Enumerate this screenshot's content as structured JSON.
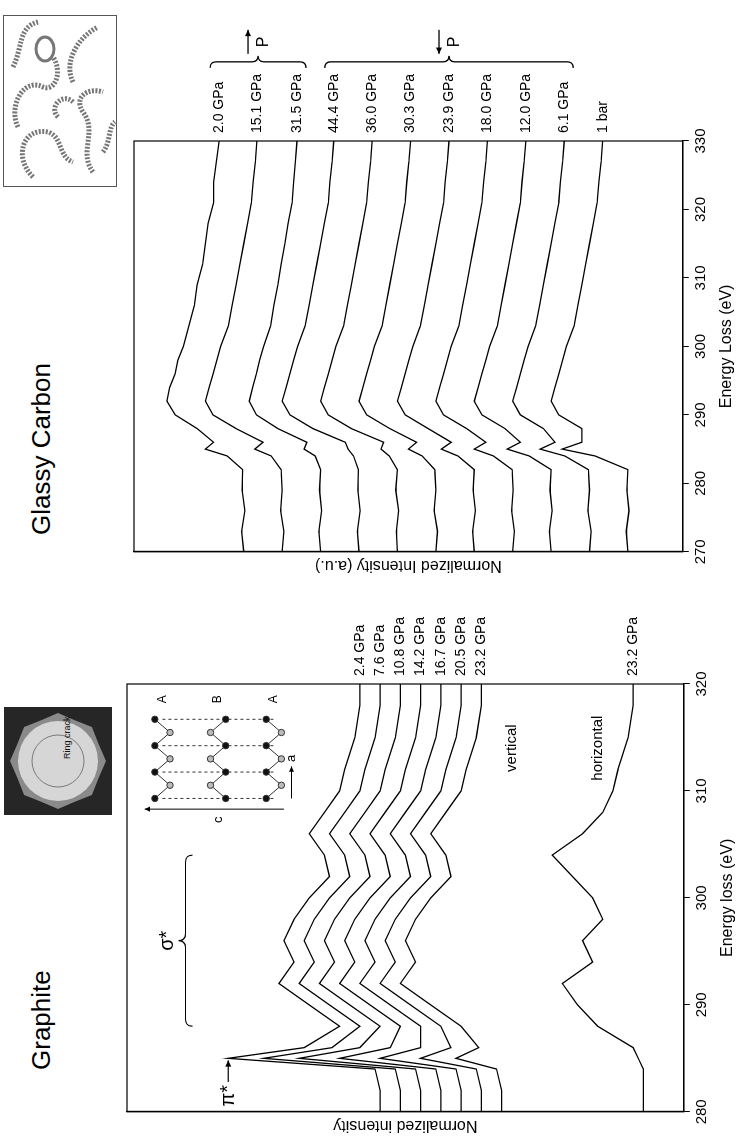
{
  "chart_data": [
    {
      "type": "line",
      "title": "Graphite",
      "x_label": "Energy loss (eV)",
      "y_label": "Normalized intensity",
      "x": [
        280,
        282,
        284,
        285,
        286,
        288,
        290,
        292,
        294,
        296,
        298,
        300,
        302,
        304,
        306,
        308,
        310,
        312,
        315,
        318,
        320
      ],
      "xlim": [
        280,
        320
      ],
      "xticks": [
        280,
        290,
        300,
        310,
        320
      ],
      "ylim": [
        0,
        110
      ],
      "grid": false,
      "tick_labels": "x",
      "color": "#000000",
      "series": [
        {
          "name": "2.4 GPa",
          "values": [
            60,
            60,
            61,
            90,
            75,
            68,
            74,
            80,
            77,
            79,
            77,
            74,
            70,
            71,
            74,
            71,
            68,
            67,
            65,
            64,
            64
          ]
        },
        {
          "name": "7.6 GPa",
          "values": [
            56,
            56,
            57,
            83,
            69.5,
            64,
            70,
            76,
            73,
            75,
            73,
            70,
            66,
            67,
            70,
            67,
            64,
            63,
            61,
            60,
            60
          ]
        },
        {
          "name": "10.8 GPa",
          "values": [
            52,
            52,
            53,
            76,
            64,
            60,
            66,
            72,
            69,
            71,
            69,
            66,
            62,
            63,
            66,
            63,
            60,
            59,
            57,
            56,
            56
          ]
        },
        {
          "name": "14.2 GPa",
          "values": [
            48,
            48,
            49,
            68,
            58,
            56,
            62,
            68,
            65,
            67,
            65,
            62,
            58,
            59,
            62,
            59,
            56,
            55,
            53,
            52,
            52
          ]
        },
        {
          "name": "16.7 GPa",
          "values": [
            44,
            44,
            45,
            60,
            52,
            52,
            58,
            64,
            61,
            63,
            61,
            58,
            54,
            55,
            58,
            55,
            52,
            51,
            49,
            48,
            48
          ]
        },
        {
          "name": "20.5 GPa",
          "values": [
            40,
            40,
            41,
            52,
            46,
            48,
            54,
            60,
            57,
            59,
            57,
            54,
            50,
            51,
            54,
            51,
            48,
            47,
            45,
            44,
            44
          ]
        },
        {
          "name": "23.2 GPa",
          "values": [
            36,
            36,
            37,
            45,
            40.5,
            44,
            50,
            56,
            53,
            55,
            53,
            50,
            46,
            47,
            50,
            47,
            44,
            43,
            41,
            40,
            40
          ]
        },
        {
          "name": "23.2 GPa",
          "values": [
            8,
            8,
            8,
            9,
            10,
            17,
            21,
            24,
            18,
            20,
            16,
            18,
            22,
            26,
            20,
            16,
            14,
            13,
            11,
            10,
            10
          ]
        }
      ],
      "annotations": [
        {
          "text": "π*",
          "x": 281.5,
          "y": 90,
          "arrow_to": [
            285,
            90
          ]
        },
        {
          "text": "σ*",
          "x": 296,
          "y": 102,
          "bracket": [
            288,
            304
          ]
        },
        {
          "text": "vertical",
          "x": 314,
          "y": 34
        },
        {
          "text": "horizontal",
          "x": 314,
          "y": 17
        }
      ],
      "crystal_structure": {
        "layers": [
          "A",
          "B",
          "A"
        ],
        "axes": [
          "c",
          "a"
        ]
      },
      "photo": {
        "label": "Ring crack"
      }
    },
    {
      "type": "line",
      "title": "Glassy Carbon",
      "x_label": "Energy Loss (eV)",
      "y_label": "Normalized Intensity (a.u.)",
      "x": [
        270,
        273,
        276,
        279,
        282,
        284,
        285,
        286,
        288,
        290,
        292,
        294,
        296,
        298,
        300,
        303,
        306,
        309,
        312,
        315,
        318,
        321,
        324,
        327,
        330
      ],
      "xlim": [
        270,
        330
      ],
      "xticks": [
        270,
        280,
        290,
        300,
        310,
        320,
        330
      ],
      "ylim": [
        0,
        100
      ],
      "grid": false,
      "tick_labels": "x",
      "color": "#000000",
      "series": [
        {
          "name": "2.0 GPa",
          "values": [
            80,
            80.4,
            79.8,
            80.3,
            80.2,
            83,
            87,
            85.5,
            88.5,
            92.5,
            94,
            93.5,
            92.5,
            92,
            91,
            90,
            89,
            88.5,
            87.5,
            87,
            86.5,
            85.5,
            85.5,
            85,
            84.5
          ]
        },
        {
          "name": "15.1 GPa",
          "values": [
            73,
            72.7,
            73.3,
            73,
            73.2,
            75,
            78,
            76.5,
            81.4,
            85.6,
            87,
            86.3,
            85.6,
            84.9,
            84.2,
            82.8,
            82.1,
            81.4,
            80.7,
            80,
            79.3,
            78.6,
            78.3,
            77.9,
            77.6
          ]
        },
        {
          "name": "31.5 GPa",
          "values": [
            66,
            66.3,
            65.8,
            66.2,
            66,
            67,
            69,
            68.5,
            73.8,
            77.7,
            79,
            78.4,
            77.7,
            77.1,
            76.4,
            75.1,
            74.5,
            73.8,
            73.2,
            72.5,
            71.9,
            71.2,
            70.9,
            70.6,
            70.3
          ]
        },
        {
          "name": "44.4 GPa",
          "values": [
            59,
            59.3,
            58.8,
            59.2,
            59.1,
            60,
            61,
            61.5,
            67.4,
            71.6,
            73,
            72.3,
            71.6,
            70.9,
            70.2,
            68.8,
            68.1,
            67.4,
            66.7,
            66,
            65.3,
            64.6,
            64.3,
            63.9,
            63.6
          ]
        },
        {
          "name": "36.0 GPa",
          "values": [
            52,
            52.2,
            51.8,
            52.3,
            52,
            53.5,
            55,
            54.5,
            60.4,
            64.6,
            66,
            65.3,
            64.6,
            63.9,
            63.2,
            61.8,
            61.1,
            60.4,
            59.7,
            59,
            58.3,
            57.6,
            57.3,
            56.9,
            56.6
          ]
        },
        {
          "name": "30.3 GPa",
          "values": [
            45,
            44.7,
            45.3,
            45,
            45.2,
            47.5,
            50,
            48.5,
            53.4,
            57.6,
            59,
            58.3,
            57.6,
            56.9,
            56.2,
            54.8,
            54.1,
            53.4,
            52.7,
            52,
            51.3,
            50.6,
            50.3,
            49.9,
            49.6
          ]
        },
        {
          "name": "23.9 GPa",
          "values": [
            38,
            38.3,
            37.8,
            38.2,
            38,
            41,
            44,
            42.2,
            46.4,
            50.6,
            52,
            51.3,
            50.6,
            49.9,
            49.2,
            47.8,
            47.1,
            46.4,
            45.7,
            45,
            44.3,
            43.6,
            43.3,
            42.9,
            42.6
          ]
        },
        {
          "name": "18.0 GPa",
          "values": [
            31,
            30.7,
            31.2,
            30.9,
            31.1,
            34.5,
            38,
            35.9,
            39.4,
            43.6,
            45,
            44.3,
            43.6,
            42.9,
            42.2,
            40.8,
            40.1,
            39.4,
            38.7,
            38,
            37.3,
            36.6,
            36.3,
            35.9,
            35.6
          ]
        },
        {
          "name": "12.0 GPa",
          "values": [
            24,
            24.3,
            23.8,
            24.2,
            24,
            28,
            32,
            29.6,
            32.4,
            36.6,
            38,
            37.3,
            36.6,
            35.9,
            35.2,
            33.8,
            33.1,
            32.4,
            31.7,
            31,
            30.3,
            29.6,
            29.3,
            28.9,
            28.6
          ]
        },
        {
          "name": "6.1 GPa",
          "values": [
            17,
            16.7,
            17.3,
            17,
            17.2,
            21.5,
            26,
            23.3,
            25.4,
            29.6,
            31,
            30.3,
            29.6,
            28.9,
            28.2,
            26.8,
            26.1,
            25.4,
            24.7,
            24,
            23.3,
            22.6,
            22.3,
            21.9,
            21.6
          ]
        },
        {
          "name": "1 bar",
          "values": [
            10,
            10.3,
            9.8,
            10.2,
            10,
            16,
            22,
            18.4,
            18.4,
            22.6,
            24,
            23.3,
            22.6,
            21.9,
            21.2,
            19.8,
            19.1,
            18.4,
            17.7,
            17,
            16.3,
            15.6,
            15.3,
            14.9,
            14.6
          ]
        }
      ],
      "groups": [
        {
          "label": "P",
          "arrow": "right",
          "series": [
            "2.0 GPa",
            "15.1 GPa",
            "31.5 GPa"
          ]
        },
        {
          "label": "P",
          "arrow": "left",
          "series": [
            "44.4 GPa",
            "36.0 GPa",
            "30.3 GPa",
            "23.9 GPa",
            "18.0 GPa",
            "12.0 GPa",
            "6.1 GPa"
          ]
        }
      ]
    }
  ]
}
